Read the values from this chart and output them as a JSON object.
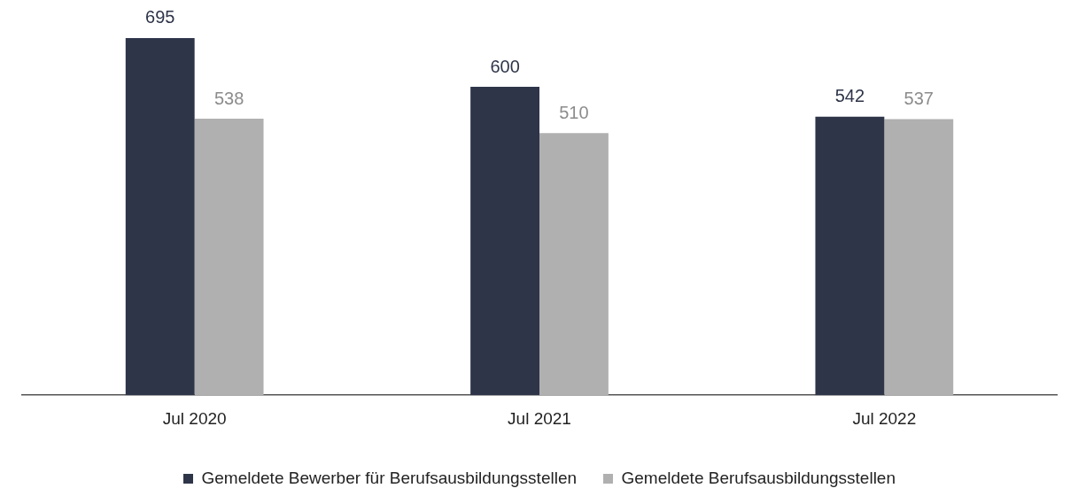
{
  "chart_data": {
    "type": "bar",
    "categories": [
      "Jul 2020",
      "Jul 2021",
      "Jul 2022"
    ],
    "series": [
      {
        "name": "Gemeldete Bewerber für Berufsausbildungsstellen",
        "color": "#2e3549",
        "values": [
          695,
          600,
          542
        ]
      },
      {
        "name": "Gemeldete Berufsausbildungsstellen",
        "color": "#b0b0b0",
        "values": [
          538,
          510,
          537
        ]
      }
    ],
    "data_labels": true,
    "legend": "bottom",
    "grid": false
  }
}
